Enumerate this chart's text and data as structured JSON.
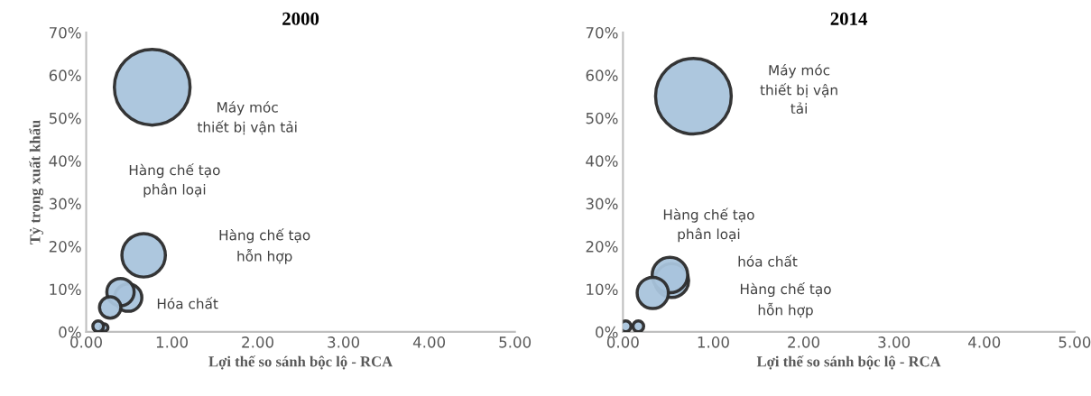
{
  "chart_data": [
    {
      "type": "bubble",
      "title": "2000",
      "xlabel": "Lợi thế so sánh bộc lộ - RCA",
      "ylabel": "Tỷ trọng xuất khẩu",
      "xlim": [
        0,
        5
      ],
      "xticks": [
        {
          "value": 0,
          "label": "0.00"
        },
        {
          "value": 1,
          "label": "1.00"
        },
        {
          "value": 2,
          "label": "2.00"
        },
        {
          "value": 3,
          "label": "3.00"
        },
        {
          "value": 4,
          "label": "4.00"
        },
        {
          "value": 5,
          "label": "5.00"
        }
      ],
      "ylim": [
        0,
        70
      ],
      "yticks": [
        {
          "value": 0,
          "label": "0%"
        },
        {
          "value": 10,
          "label": "10%"
        },
        {
          "value": 20,
          "label": "20%"
        },
        {
          "value": 30,
          "label": "30%"
        },
        {
          "value": 40,
          "label": "40%"
        },
        {
          "value": 50,
          "label": "50%"
        },
        {
          "value": 60,
          "label": "60%"
        },
        {
          "value": 70,
          "label": "70%"
        }
      ],
      "series": [
        {
          "color": "#a9c4dc",
          "x": [
            0.77,
            0.67,
            0.49,
            0.4,
            0.28,
            0.21,
            0.14
          ],
          "values": [
            57.2,
            17.9,
            8.0,
            9.3,
            5.7,
            1.0,
            1.3
          ],
          "sizes": [
            1,
            0.33,
            0.13,
            0.13,
            0.08,
            0.01,
            0.02
          ]
        }
      ],
      "annotations": [
        "Máy móc\nthiết bị vận tải",
        "Hàng chế tạo\nphân loại",
        "Hàng chế tạo\nhỗn hợp",
        "Hóa chất"
      ]
    },
    {
      "type": "bubble",
      "title": "2014",
      "xlabel": "Lợi thế so sánh bộc lộ - RCA",
      "xlim": [
        0,
        5
      ],
      "xticks": [
        {
          "value": 0,
          "label": "0.00"
        },
        {
          "value": 1,
          "label": "1.00"
        },
        {
          "value": 2,
          "label": "2.00"
        },
        {
          "value": 3,
          "label": "3.00"
        },
        {
          "value": 4,
          "label": "4.00"
        },
        {
          "value": 5,
          "label": "5.00"
        }
      ],
      "ylim": [
        0,
        70
      ],
      "yticks": [
        {
          "value": 0,
          "label": "0%"
        },
        {
          "value": 10,
          "label": "10%"
        },
        {
          "value": 20,
          "label": "20%"
        },
        {
          "value": 30,
          "label": "30%"
        },
        {
          "value": 40,
          "label": "40%"
        },
        {
          "value": 50,
          "label": "50%"
        },
        {
          "value": 60,
          "label": "60%"
        },
        {
          "value": 70,
          "label": "70%"
        }
      ],
      "series": [
        {
          "color": "#a9c4dc",
          "x": [
            0.78,
            0.54,
            0.52,
            0.33,
            0.17,
            0.03
          ],
          "values": [
            55.1,
            12.0,
            13.3,
            9.1,
            1.3,
            1.3
          ],
          "sizes": [
            1,
            0.2,
            0.22,
            0.17,
            0.02,
            0.02
          ]
        }
      ],
      "annotations": [
        "Máy móc\nthiết bị vận\ntải",
        "Hàng chế tạo\nphân loại",
        "hóa chất",
        "Hàng chế tạo\nhỗn hợp"
      ]
    }
  ]
}
